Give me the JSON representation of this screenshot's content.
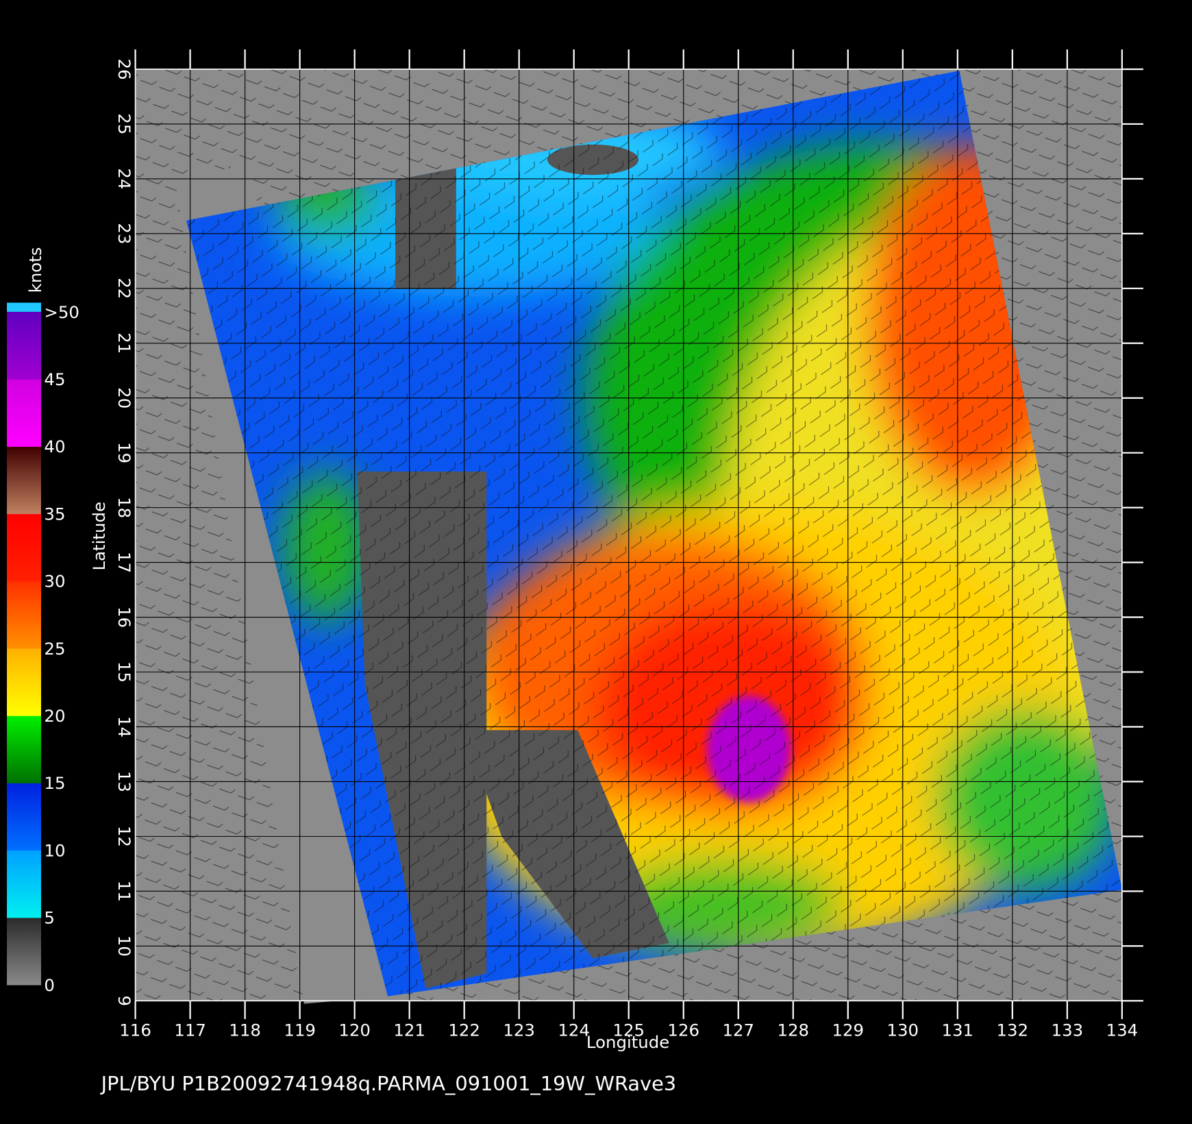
{
  "map": {
    "footer": "JPL/BYU  P1B20092741948q.PARMA_091001_19W_WRave3",
    "x_axis": {
      "label": "Longitude",
      "lim": [
        116,
        134
      ],
      "ticks": [
        116,
        117,
        118,
        119,
        120,
        121,
        122,
        123,
        124,
        125,
        126,
        127,
        128,
        129,
        130,
        131,
        132,
        133,
        134
      ]
    },
    "y_axis": {
      "label": "Latitude",
      "lim": [
        9,
        26
      ],
      "ticks": [
        9,
        10,
        11,
        12,
        13,
        14,
        15,
        16,
        17,
        18,
        19,
        20,
        21,
        22,
        23,
        24,
        25,
        26
      ]
    },
    "colorbar": {
      "unit": "knots",
      "labels": [
        0,
        5,
        10,
        15,
        20,
        25,
        30,
        35,
        40,
        45,
        ">50"
      ],
      "colors": [
        [
          "#8a8a8a",
          "#2a2a2a"
        ],
        [
          "#00f0f0",
          "#00a0ff"
        ],
        [
          "#0070ff",
          "#0020e0"
        ],
        [
          "#007000",
          "#00f000"
        ],
        [
          "#ffff00",
          "#ffb000"
        ],
        [
          "#ff9000",
          "#ff3000"
        ],
        [
          "#ff2000",
          "#ff0000"
        ],
        [
          "#c08060",
          "#400000"
        ],
        [
          "#ff00ff",
          "#d000e0"
        ],
        [
          "#a000d0",
          "#6000c0"
        ]
      ]
    }
  }
}
